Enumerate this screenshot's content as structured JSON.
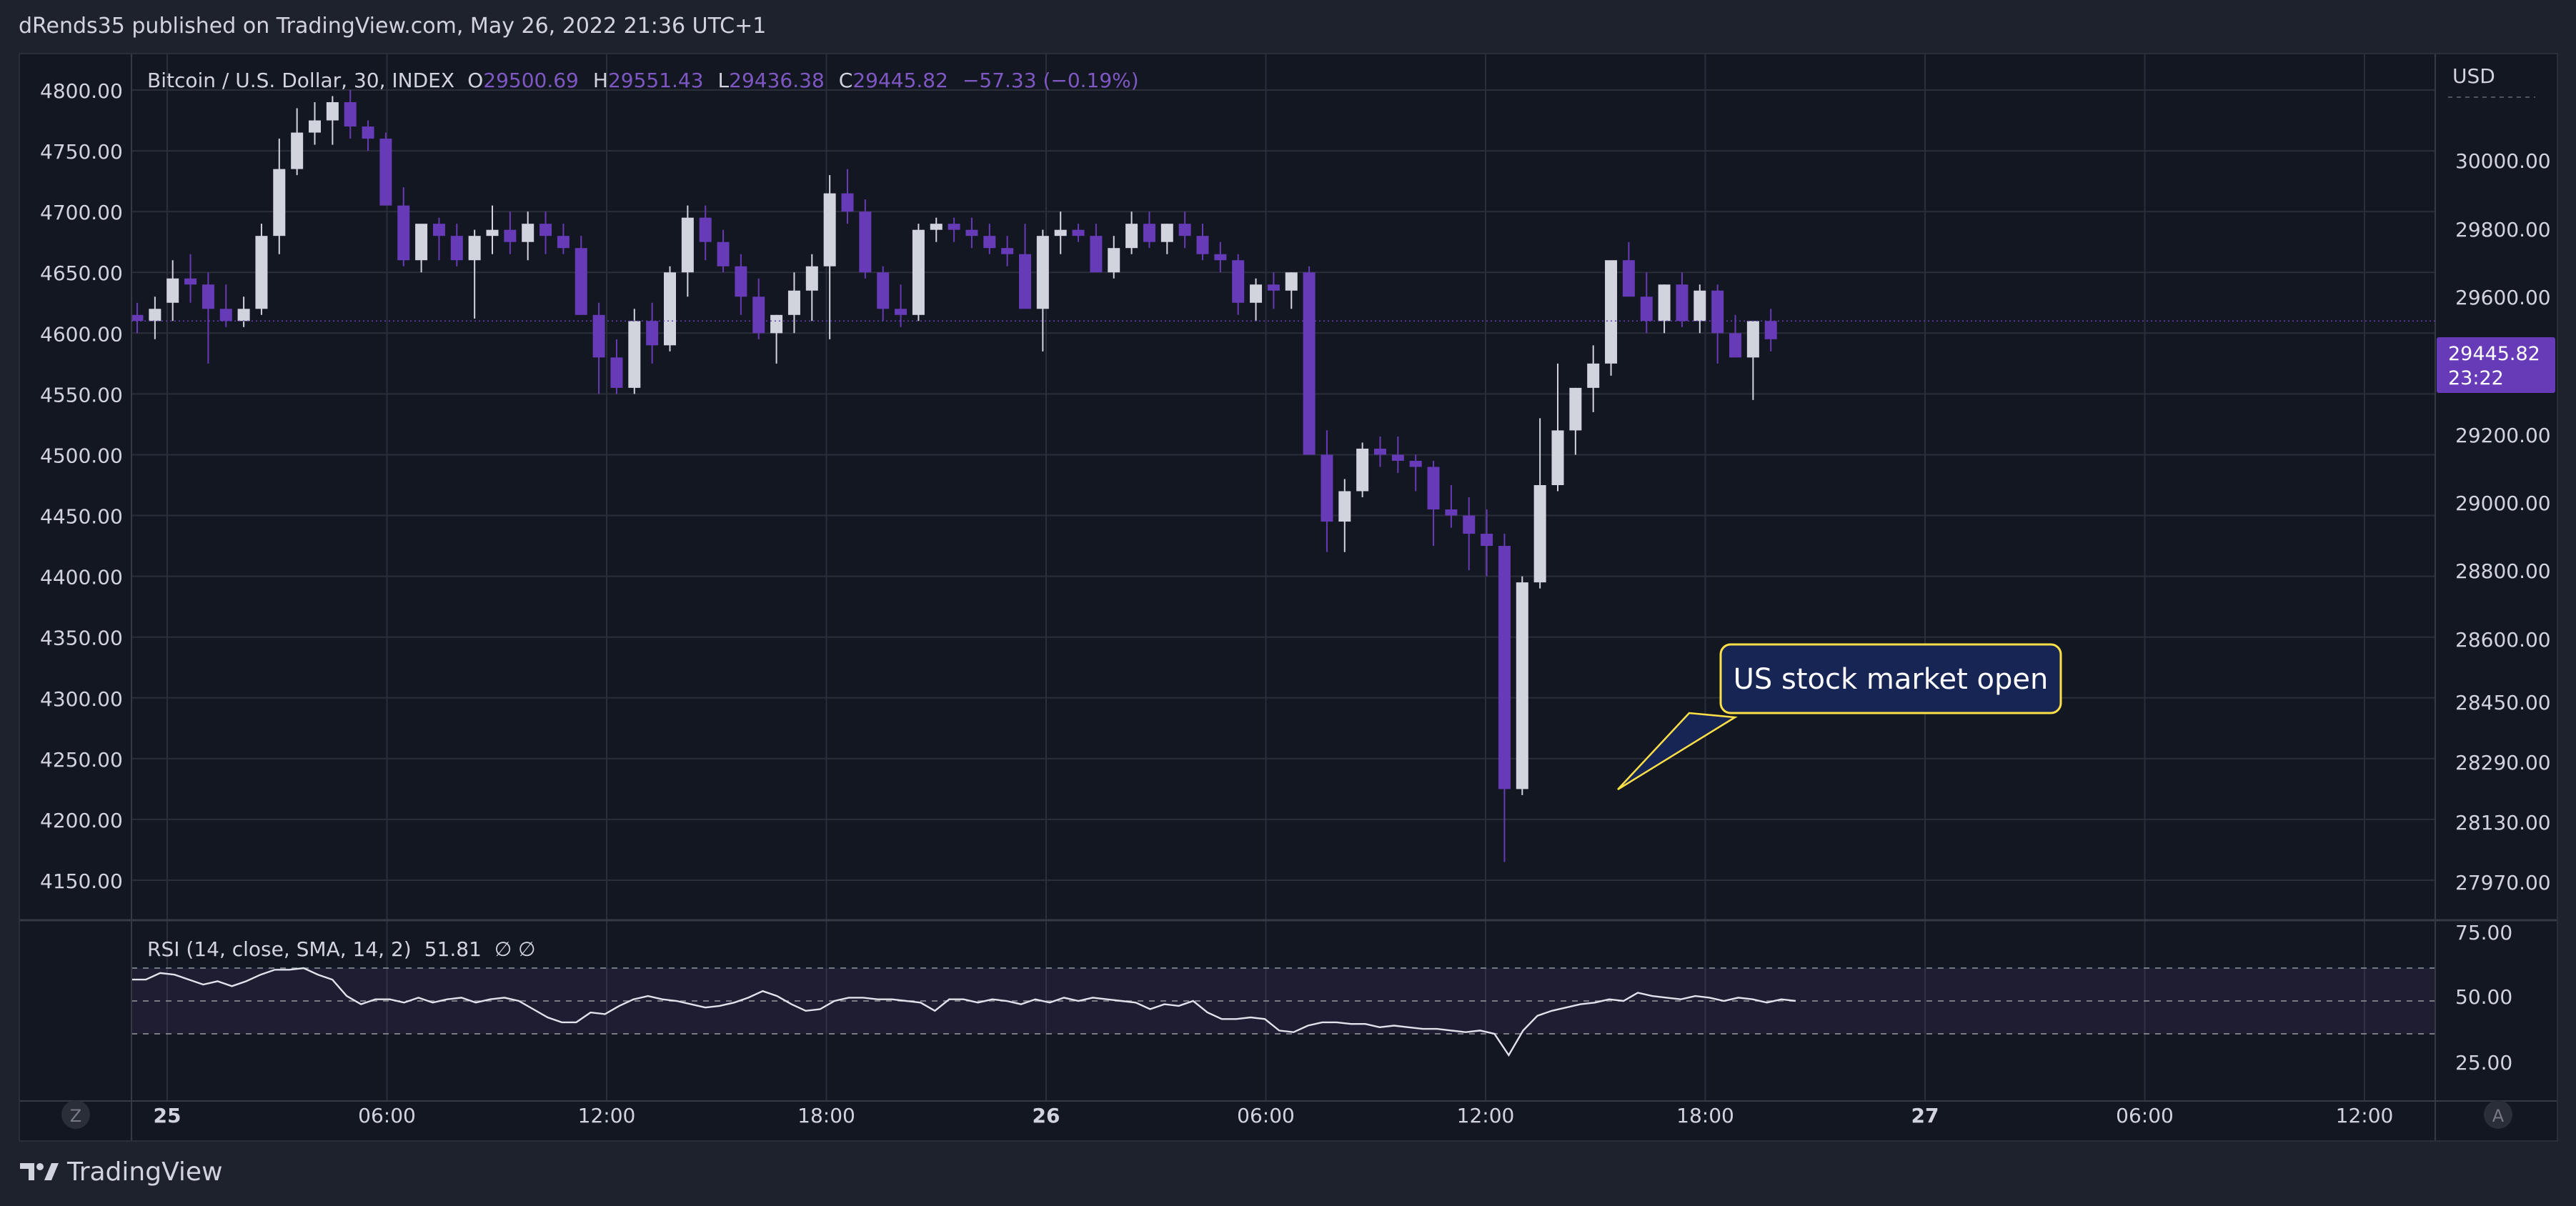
{
  "header": {
    "published_text": "dRends35 published on TradingView.com, May 26, 2022 21:36 UTC+1"
  },
  "footer": {
    "brand": "TradingView"
  },
  "colors": {
    "background": "#131722",
    "frame": "#1e222d",
    "up_candle": "#d1d4dc",
    "down_candle": "#673ab7",
    "accent": "#7e57c2",
    "callout_fill": "#172554",
    "callout_border": "#fde047"
  },
  "chart_data": {
    "type": "candlestick",
    "symbol_title": "Bitcoin / U.S. Dollar, 30, INDEX",
    "ohlc": {
      "o_label": "O",
      "o_value": "29500.69",
      "h_label": "H",
      "h_value": "29551.43",
      "l_label": "L",
      "l_value": "29436.38",
      "c_label": "C",
      "c_value": "29445.82",
      "change": "−57.33 (−0.19%)"
    },
    "currency": "USD",
    "last_price_label": "29445.82",
    "countdown": "23:22",
    "left_axis_ticks": [
      "4800.00",
      "4750.00",
      "4700.00",
      "4650.00",
      "4600.00",
      "4550.00",
      "4500.00",
      "4450.00",
      "4400.00",
      "4350.00",
      "4300.00",
      "4250.00",
      "4200.00",
      "4150.00"
    ],
    "right_axis_ticks": [
      "30000.00",
      "29800.00",
      "29600.00",
      "29200.00",
      "29000.00",
      "28800.00",
      "28600.00",
      "28450.00",
      "28290.00",
      "28130.00",
      "27970.00"
    ],
    "right_axis_scale": "log",
    "x_ticks": [
      {
        "label": "25",
        "bold": true
      },
      {
        "label": "06:00",
        "bold": false
      },
      {
        "label": "12:00",
        "bold": false
      },
      {
        "label": "18:00",
        "bold": false
      },
      {
        "label": "26",
        "bold": true
      },
      {
        "label": "06:00",
        "bold": false
      },
      {
        "label": "12:00",
        "bold": false
      },
      {
        "label": "18:00",
        "bold": false
      },
      {
        "label": "27",
        "bold": true
      },
      {
        "label": "06:00",
        "bold": false
      },
      {
        "label": "12:00",
        "bold": false
      }
    ],
    "candles_left_scale": [
      [
        4615,
        4625,
        4600,
        4610
      ],
      [
        4610,
        4630,
        4595,
        4620
      ],
      [
        4625,
        4660,
        4610,
        4645
      ],
      [
        4645,
        4665,
        4625,
        4640
      ],
      [
        4640,
        4650,
        4575,
        4620
      ],
      [
        4620,
        4640,
        4605,
        4610
      ],
      [
        4610,
        4630,
        4605,
        4620
      ],
      [
        4620,
        4690,
        4615,
        4680
      ],
      [
        4680,
        4760,
        4665,
        4735
      ],
      [
        4735,
        4785,
        4730,
        4765
      ],
      [
        4765,
        4790,
        4755,
        4775
      ],
      [
        4775,
        4795,
        4755,
        4790
      ],
      [
        4790,
        4800,
        4760,
        4770
      ],
      [
        4770,
        4775,
        4750,
        4760
      ],
      [
        4760,
        4765,
        4705,
        4705
      ],
      [
        4705,
        4720,
        4655,
        4660
      ],
      [
        4660,
        4685,
        4650,
        4690
      ],
      [
        4690,
        4695,
        4660,
        4680
      ],
      [
        4680,
        4690,
        4655,
        4660
      ],
      [
        4660,
        4685,
        4612,
        4680
      ],
      [
        4680,
        4705,
        4665,
        4685
      ],
      [
        4685,
        4700,
        4665,
        4675
      ],
      [
        4675,
        4700,
        4660,
        4690
      ],
      [
        4690,
        4700,
        4665,
        4680
      ],
      [
        4680,
        4690,
        4665,
        4670
      ],
      [
        4670,
        4680,
        4615,
        4615
      ],
      [
        4615,
        4625,
        4550,
        4580
      ],
      [
        4580,
        4595,
        4550,
        4555
      ],
      [
        4555,
        4620,
        4550,
        4610
      ],
      [
        4610,
        4625,
        4575,
        4590
      ],
      [
        4590,
        4655,
        4585,
        4650
      ],
      [
        4650,
        4705,
        4630,
        4695
      ],
      [
        4695,
        4705,
        4660,
        4675
      ],
      [
        4675,
        4685,
        4650,
        4655
      ],
      [
        4655,
        4665,
        4615,
        4630
      ],
      [
        4630,
        4645,
        4595,
        4600
      ],
      [
        4600,
        4615,
        4575,
        4615
      ],
      [
        4615,
        4650,
        4600,
        4635
      ],
      [
        4635,
        4665,
        4610,
        4655
      ],
      [
        4655,
        4730,
        4595,
        4715
      ],
      [
        4715,
        4735,
        4690,
        4700
      ],
      [
        4700,
        4710,
        4645,
        4650
      ],
      [
        4650,
        4655,
        4610,
        4620
      ],
      [
        4620,
        4640,
        4605,
        4615
      ],
      [
        4615,
        4690,
        4610,
        4685
      ],
      [
        4685,
        4695,
        4675,
        4690
      ],
      [
        4690,
        4695,
        4675,
        4685
      ],
      [
        4685,
        4695,
        4670,
        4680
      ],
      [
        4680,
        4690,
        4665,
        4670
      ],
      [
        4670,
        4680,
        4655,
        4665
      ],
      [
        4665,
        4690,
        4645,
        4620
      ],
      [
        4620,
        4685,
        4585,
        4680
      ],
      [
        4680,
        4700,
        4665,
        4685
      ],
      [
        4685,
        4690,
        4675,
        4680
      ],
      [
        4680,
        4690,
        4650,
        4650
      ],
      [
        4650,
        4680,
        4645,
        4670
      ],
      [
        4670,
        4700,
        4665,
        4690
      ],
      [
        4690,
        4700,
        4670,
        4675
      ],
      [
        4675,
        4690,
        4665,
        4690
      ],
      [
        4690,
        4700,
        4670,
        4680
      ],
      [
        4680,
        4690,
        4660,
        4665
      ],
      [
        4665,
        4675,
        4650,
        4660
      ],
      [
        4660,
        4665,
        4615,
        4625
      ],
      [
        4625,
        4645,
        4610,
        4640
      ],
      [
        4640,
        4650,
        4620,
        4635
      ],
      [
        4635,
        4650,
        4620,
        4650
      ],
      [
        4650,
        4655,
        4500,
        4500
      ],
      [
        4500,
        4520,
        4420,
        4445
      ],
      [
        4445,
        4480,
        4420,
        4470
      ],
      [
        4470,
        4510,
        4465,
        4505
      ],
      [
        4505,
        4515,
        4490,
        4500
      ],
      [
        4500,
        4515,
        4485,
        4495
      ],
      [
        4495,
        4500,
        4470,
        4490
      ],
      [
        4490,
        4495,
        4425,
        4455
      ],
      [
        4455,
        4475,
        4440,
        4450
      ],
      [
        4450,
        4465,
        4405,
        4435
      ],
      [
        4435,
        4455,
        4400,
        4425
      ],
      [
        4425,
        4435,
        4165,
        4225
      ],
      [
        4225,
        4400,
        4220,
        4395
      ],
      [
        4395,
        4530,
        4390,
        4475
      ],
      [
        4475,
        4575,
        4470,
        4520
      ],
      [
        4520,
        4555,
        4500,
        4555
      ],
      [
        4555,
        4590,
        4535,
        4575
      ],
      [
        4575,
        4630,
        4565,
        4660
      ],
      [
        4660,
        4675,
        4635,
        4630
      ],
      [
        4630,
        4650,
        4600,
        4610
      ],
      [
        4610,
        4640,
        4600,
        4640
      ],
      [
        4640,
        4650,
        4605,
        4610
      ],
      [
        4610,
        4640,
        4600,
        4635
      ],
      [
        4635,
        4640,
        4575,
        4600
      ],
      [
        4600,
        4615,
        4580,
        4580
      ],
      [
        4580,
        4600,
        4545,
        4610
      ],
      [
        4610,
        4620,
        4585,
        4595
      ]
    ],
    "last_up_index": 92,
    "callout": {
      "text": "US stock market open",
      "anchor_candle_index": 79
    },
    "rsi": {
      "label": "RSI (14, close, SMA, 14, 2)",
      "value": "51.81",
      "extra": "∅  ∅",
      "axis_ticks": [
        "75.00",
        "50.00",
        "25.00"
      ],
      "upper_band": 70,
      "middle": 50,
      "lower_band": 30,
      "values": [
        63,
        63,
        67,
        66,
        63,
        60,
        62,
        59,
        62,
        66,
        69,
        69,
        70,
        66,
        63,
        53,
        48,
        51,
        51,
        49,
        52,
        49,
        51,
        52,
        49,
        51,
        52,
        50,
        45,
        40,
        37,
        37,
        43,
        42,
        47,
        51,
        53,
        51,
        50,
        48,
        46,
        47,
        49,
        52,
        56,
        53,
        48,
        44,
        45,
        50,
        52,
        52,
        51,
        51,
        50,
        49,
        44,
        51,
        51,
        49,
        51,
        50,
        48,
        51,
        49,
        52,
        50,
        52,
        51,
        50,
        49,
        45,
        48,
        47,
        50,
        43,
        39,
        39,
        40,
        39,
        32,
        31,
        35,
        37,
        37,
        36,
        36,
        34,
        35,
        34,
        33,
        33,
        32,
        31,
        32,
        30,
        17,
        32,
        41,
        44,
        46,
        48,
        49,
        51,
        50,
        55,
        53,
        52,
        51,
        53,
        52,
        50,
        52,
        51,
        49,
        51,
        50
      ]
    }
  }
}
